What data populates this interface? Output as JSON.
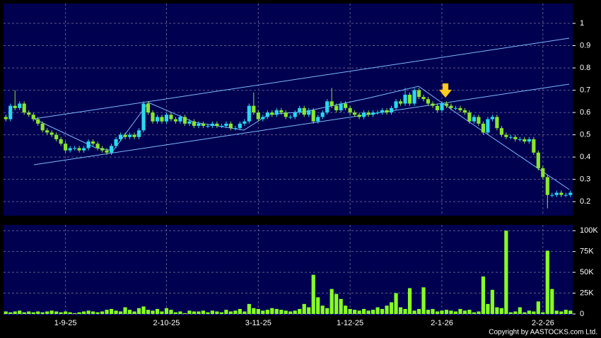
{
  "chart_data": [
    {
      "type": "candlestick",
      "up_color": "#29d8f0",
      "down_color": "#8ae62a",
      "ylim": [
        0.137,
        1.089
      ],
      "yticks": [
        0.2,
        0.3,
        0.4,
        0.5,
        0.6,
        0.7,
        0.8,
        0.9,
        1
      ],
      "grid": true,
      "open": [
        0.58,
        0.57,
        0.63,
        0.62,
        0.64,
        0.6,
        0.59,
        0.57,
        0.55,
        0.52,
        0.51,
        0.5,
        0.48,
        0.46,
        0.43,
        0.44,
        0.44,
        0.43,
        0.44,
        0.47,
        0.46,
        0.44,
        0.43,
        0.42,
        0.45,
        0.48,
        0.5,
        0.49,
        0.5,
        0.49,
        0.52,
        0.64,
        0.6,
        0.56,
        0.58,
        0.56,
        0.59,
        0.57,
        0.56,
        0.58,
        0.55,
        0.56,
        0.54,
        0.55,
        0.54,
        0.54,
        0.55,
        0.54,
        0.54,
        0.55,
        0.53,
        0.53,
        0.55,
        0.56,
        0.63,
        0.6,
        0.57,
        0.58,
        0.6,
        0.59,
        0.61,
        0.6,
        0.58,
        0.58,
        0.6,
        0.62,
        0.59,
        0.61,
        0.56,
        0.58,
        0.6,
        0.65,
        0.63,
        0.61,
        0.64,
        0.62,
        0.6,
        0.59,
        0.58,
        0.6,
        0.59,
        0.6,
        0.6,
        0.61,
        0.6,
        0.62,
        0.65,
        0.64,
        0.68,
        0.64,
        0.7,
        0.67,
        0.66,
        0.64,
        0.63,
        0.61,
        0.64,
        0.63,
        0.62,
        0.62,
        0.61,
        0.6,
        0.56,
        0.58,
        0.55,
        0.51,
        0.57,
        0.58,
        0.53,
        0.5,
        0.49,
        0.49,
        0.48,
        0.48,
        0.47,
        0.48,
        0.42,
        0.35,
        0.31,
        0.23,
        0.23,
        0.24,
        0.23,
        0.23
      ],
      "high": [
        0.59,
        0.64,
        0.7,
        0.65,
        0.65,
        0.61,
        0.6,
        0.58,
        0.56,
        0.53,
        0.52,
        0.51,
        0.49,
        0.47,
        0.45,
        0.45,
        0.45,
        0.45,
        0.48,
        0.48,
        0.47,
        0.45,
        0.44,
        0.46,
        0.49,
        0.51,
        0.51,
        0.51,
        0.51,
        0.53,
        0.65,
        0.65,
        0.61,
        0.59,
        0.59,
        0.6,
        0.6,
        0.58,
        0.59,
        0.59,
        0.57,
        0.57,
        0.56,
        0.56,
        0.55,
        0.56,
        0.56,
        0.55,
        0.56,
        0.56,
        0.54,
        0.56,
        0.57,
        0.64,
        0.69,
        0.61,
        0.59,
        0.61,
        0.61,
        0.62,
        0.62,
        0.61,
        0.59,
        0.61,
        0.63,
        0.63,
        0.62,
        0.62,
        0.59,
        0.61,
        0.66,
        0.71,
        0.64,
        0.65,
        0.65,
        0.63,
        0.61,
        0.6,
        0.61,
        0.61,
        0.61,
        0.61,
        0.62,
        0.62,
        0.63,
        0.66,
        0.66,
        0.71,
        0.69,
        0.71,
        0.71,
        0.68,
        0.67,
        0.65,
        0.64,
        0.65,
        0.65,
        0.64,
        0.63,
        0.63,
        0.62,
        0.61,
        0.59,
        0.59,
        0.56,
        0.58,
        0.59,
        0.59,
        0.54,
        0.51,
        0.5,
        0.5,
        0.49,
        0.49,
        0.49,
        0.49,
        0.43,
        0.36,
        0.32,
        0.24,
        0.25,
        0.25,
        0.24,
        0.25
      ],
      "low": [
        0.56,
        0.56,
        0.61,
        0.61,
        0.59,
        0.58,
        0.56,
        0.54,
        0.51,
        0.5,
        0.49,
        0.47,
        0.45,
        0.42,
        0.42,
        0.43,
        0.42,
        0.42,
        0.43,
        0.45,
        0.43,
        0.42,
        0.41,
        0.41,
        0.44,
        0.47,
        0.48,
        0.48,
        0.48,
        0.48,
        0.51,
        0.59,
        0.55,
        0.55,
        0.55,
        0.55,
        0.56,
        0.55,
        0.55,
        0.54,
        0.54,
        0.53,
        0.53,
        0.53,
        0.53,
        0.53,
        0.53,
        0.53,
        0.53,
        0.52,
        0.52,
        0.52,
        0.54,
        0.55,
        0.59,
        0.56,
        0.56,
        0.57,
        0.58,
        0.58,
        0.59,
        0.57,
        0.57,
        0.57,
        0.59,
        0.58,
        0.58,
        0.55,
        0.55,
        0.57,
        0.59,
        0.62,
        0.6,
        0.6,
        0.61,
        0.59,
        0.58,
        0.57,
        0.57,
        0.58,
        0.58,
        0.59,
        0.59,
        0.59,
        0.59,
        0.61,
        0.63,
        0.63,
        0.63,
        0.63,
        0.66,
        0.65,
        0.63,
        0.62,
        0.6,
        0.6,
        0.62,
        0.61,
        0.61,
        0.6,
        0.59,
        0.55,
        0.55,
        0.54,
        0.5,
        0.5,
        0.56,
        0.52,
        0.49,
        0.48,
        0.48,
        0.47,
        0.47,
        0.46,
        0.46,
        0.41,
        0.34,
        0.3,
        0.17,
        0.22,
        0.22,
        0.22,
        0.22,
        0.22
      ],
      "close": [
        0.57,
        0.63,
        0.62,
        0.64,
        0.6,
        0.59,
        0.57,
        0.55,
        0.52,
        0.51,
        0.5,
        0.48,
        0.46,
        0.43,
        0.44,
        0.44,
        0.43,
        0.44,
        0.47,
        0.46,
        0.44,
        0.43,
        0.42,
        0.45,
        0.48,
        0.5,
        0.49,
        0.5,
        0.49,
        0.52,
        0.64,
        0.6,
        0.56,
        0.58,
        0.56,
        0.59,
        0.57,
        0.56,
        0.58,
        0.55,
        0.56,
        0.54,
        0.55,
        0.54,
        0.54,
        0.55,
        0.54,
        0.54,
        0.55,
        0.53,
        0.53,
        0.55,
        0.56,
        0.63,
        0.6,
        0.57,
        0.58,
        0.6,
        0.59,
        0.61,
        0.6,
        0.58,
        0.58,
        0.6,
        0.62,
        0.59,
        0.61,
        0.56,
        0.58,
        0.6,
        0.65,
        0.63,
        0.61,
        0.64,
        0.62,
        0.6,
        0.59,
        0.58,
        0.6,
        0.59,
        0.6,
        0.6,
        0.61,
        0.6,
        0.62,
        0.65,
        0.64,
        0.68,
        0.64,
        0.7,
        0.67,
        0.66,
        0.64,
        0.63,
        0.61,
        0.64,
        0.63,
        0.62,
        0.62,
        0.61,
        0.6,
        0.56,
        0.58,
        0.55,
        0.51,
        0.57,
        0.58,
        0.53,
        0.5,
        0.49,
        0.49,
        0.48,
        0.48,
        0.47,
        0.48,
        0.42,
        0.35,
        0.31,
        0.23,
        0.23,
        0.24,
        0.23,
        0.23,
        0.24
      ]
    },
    {
      "type": "bar",
      "color": "#88ff22",
      "ylim": [
        0,
        107000
      ],
      "yticks": [
        {
          "value": 0,
          "label": "0"
        },
        {
          "value": 25000,
          "label": "25K"
        },
        {
          "value": 50000,
          "label": "50K"
        },
        {
          "value": 75000,
          "label": "75K"
        },
        {
          "value": 100000,
          "label": "100K"
        }
      ],
      "grid": true,
      "categories": [
        null,
        null,
        null,
        null,
        null,
        null,
        null,
        null,
        null,
        null,
        null,
        null,
        null,
        "1-9-25",
        null,
        null,
        null,
        null,
        null,
        null,
        null,
        null,
        null,
        null,
        null,
        null,
        null,
        null,
        null,
        null,
        null,
        null,
        null,
        null,
        null,
        "2-10-25",
        null,
        null,
        null,
        null,
        null,
        null,
        null,
        null,
        null,
        null,
        null,
        null,
        null,
        null,
        null,
        null,
        null,
        null,
        null,
        "3-11-25",
        null,
        null,
        null,
        null,
        null,
        null,
        null,
        null,
        null,
        null,
        null,
        null,
        null,
        null,
        null,
        null,
        null,
        null,
        null,
        "1-12-25",
        null,
        null,
        null,
        null,
        null,
        null,
        null,
        null,
        null,
        null,
        null,
        null,
        null,
        null,
        null,
        null,
        null,
        null,
        null,
        "2-1-26",
        null,
        null,
        null,
        null,
        null,
        null,
        null,
        null,
        null,
        null,
        null,
        null,
        null,
        null,
        null,
        null,
        null,
        null,
        null,
        null,
        null,
        "2-2-26",
        null,
        null,
        null,
        null,
        null,
        null
      ],
      "values": [
        3000,
        2000,
        3000,
        4000,
        2000,
        3000,
        2000,
        3000,
        2000,
        3000,
        4000,
        3000,
        2000,
        3000,
        2000,
        1000,
        2000,
        3000,
        4000,
        3000,
        2000,
        3000,
        5000,
        6000,
        4000,
        3000,
        8000,
        5000,
        3000,
        7000,
        9000,
        5000,
        4000,
        6000,
        3000,
        7000,
        5000,
        2000,
        3000,
        1000,
        4000,
        3000,
        3000,
        4000,
        2000,
        4000,
        3000,
        2000,
        5000,
        3000,
        4000,
        6000,
        3000,
        12000,
        7000,
        6000,
        4000,
        5000,
        7000,
        6000,
        5000,
        4000,
        3000,
        4000,
        6000,
        12000,
        8000,
        47000,
        20000,
        10000,
        7000,
        30000,
        24000,
        18000,
        10000,
        6000,
        5000,
        4000,
        6000,
        4000,
        5000,
        8000,
        6000,
        10000,
        14000,
        25000,
        8000,
        6000,
        31000,
        4000,
        6000,
        32000,
        5000,
        6000,
        3000,
        4000,
        5000,
        4000,
        3000,
        6000,
        4000,
        5000,
        2000,
        3000,
        45000,
        12000,
        29000,
        8000,
        7000,
        100000,
        2000,
        3000,
        8000,
        2000,
        4000,
        3000,
        15000,
        2000,
        76000,
        30000,
        4000,
        3000,
        5000,
        4000
      ]
    }
  ],
  "copyright": "Copyright by AASTOCKS.com Ltd."
}
